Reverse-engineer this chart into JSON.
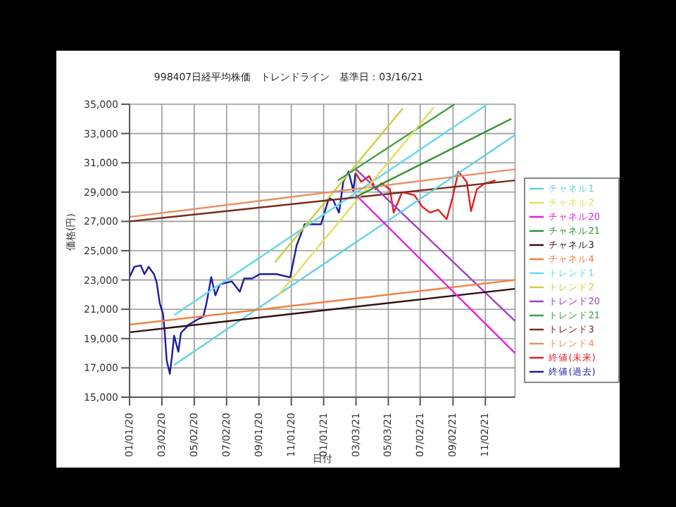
{
  "chart_data": {
    "type": "line",
    "title": "998407日経平均株価　トレンドライン　基準日：03/16/21",
    "xlabel": "日付",
    "ylabel": "価格(円)",
    "xlim": [
      "2020-01-01",
      "2021-12-28"
    ],
    "xticks": [
      {
        "value": "2020-01-01",
        "label": "01/01/20"
      },
      {
        "value": "2020-03-02",
        "label": "03/02/20"
      },
      {
        "value": "2020-05-02",
        "label": "05/02/20"
      },
      {
        "value": "2020-07-02",
        "label": "07/02/20"
      },
      {
        "value": "2020-09-01",
        "label": "09/01/20"
      },
      {
        "value": "2020-11-01",
        "label": "11/01/20"
      },
      {
        "value": "2021-01-01",
        "label": "01/01/21"
      },
      {
        "value": "2021-03-03",
        "label": "03/03/21"
      },
      {
        "value": "2021-05-03",
        "label": "05/03/21"
      },
      {
        "value": "2021-07-02",
        "label": "07/02/21"
      },
      {
        "value": "2021-09-02",
        "label": "09/02/21"
      },
      {
        "value": "2021-11-02",
        "label": "11/02/21"
      }
    ],
    "ylim": [
      15000,
      35000
    ],
    "yticks": [
      {
        "value": 15000,
        "label": "15,000"
      },
      {
        "value": 17000,
        "label": "17,000"
      },
      {
        "value": 19000,
        "label": "19,000"
      },
      {
        "value": 21000,
        "label": "21,000"
      },
      {
        "value": 23000,
        "label": "23,000"
      },
      {
        "value": 25000,
        "label": "25,000"
      },
      {
        "value": 27000,
        "label": "27,000"
      },
      {
        "value": 29000,
        "label": "29,000"
      },
      {
        "value": 31000,
        "label": "31,000"
      },
      {
        "value": 33000,
        "label": "33,000"
      },
      {
        "value": 35000,
        "label": "35,000"
      }
    ],
    "grid": true,
    "legend": "right",
    "marker": "none",
    "line_style": "solid",
    "series": [
      {
        "name": "終値(過去)",
        "color": "#1c1ca0",
        "x": [
          "2020-01-01",
          "2020-01-10",
          "2020-01-22",
          "2020-01-29",
          "2020-02-06",
          "2020-02-16",
          "2020-02-21",
          "2020-02-27",
          "2020-03-04",
          "2020-03-07",
          "2020-03-11",
          "2020-03-17",
          "2020-03-21",
          "2020-03-25",
          "2020-04-02",
          "2020-04-07",
          "2020-04-22",
          "2020-05-08",
          "2020-05-19",
          "2020-05-25",
          "2020-06-03",
          "2020-06-11",
          "2020-06-19",
          "2020-07-12",
          "2020-07-27",
          "2020-08-04",
          "2020-08-19",
          "2020-09-03",
          "2020-10-04",
          "2020-10-27",
          "2020-10-30",
          "2020-11-11",
          "2020-11-26",
          "2020-12-27",
          "2021-01-11",
          "2021-01-19",
          "2021-01-30",
          "2021-02-07",
          "2021-02-17",
          "2021-02-26",
          "2021-03-02"
        ],
        "values": [
          23200,
          23900,
          24000,
          23400,
          23900,
          23400,
          22850,
          21400,
          20700,
          19600,
          17500,
          16600,
          17800,
          19200,
          18100,
          19400,
          19950,
          20300,
          20500,
          21400,
          23200,
          21950,
          22700,
          22900,
          22200,
          23100,
          23100,
          23400,
          23400,
          23200,
          23200,
          25350,
          26800,
          26800,
          28600,
          28450,
          27600,
          29700,
          30400,
          29100,
          30300
        ]
      },
      {
        "name": "終値(未来)",
        "color": "#e02020",
        "x": [
          "2021-03-02",
          "2021-03-13",
          "2021-03-28",
          "2021-04-09",
          "2021-04-20",
          "2021-05-06",
          "2021-05-13",
          "2021-05-29",
          "2021-06-21",
          "2021-07-06",
          "2021-07-21",
          "2021-08-05",
          "2021-08-21",
          "2021-09-01",
          "2021-09-12",
          "2021-09-28",
          "2021-10-06",
          "2021-10-17",
          "2021-11-01",
          "2021-11-13",
          "2021-11-21"
        ],
        "values": [
          30300,
          29700,
          30100,
          29200,
          29600,
          29200,
          27600,
          29000,
          28800,
          28000,
          27600,
          27800,
          27150,
          28600,
          30400,
          29700,
          27700,
          29200,
          29600,
          29700,
          29800
        ]
      },
      {
        "name": "トレンド1",
        "color": "#66d8ec",
        "x": [
          "2020-03-25",
          "2021-11-06"
        ],
        "values": [
          20600,
          35000
        ]
      },
      {
        "name": "トレンド2",
        "color": "#c8d040",
        "x": [
          "2020-10-01",
          "2021-05-30"
        ],
        "values": [
          24200,
          34700
        ]
      },
      {
        "name": "トレンド3",
        "color": "#7a2a1a",
        "x": [
          "2020-01-01",
          "2021-12-28"
        ],
        "values": [
          27000,
          29800
        ]
      },
      {
        "name": "トレンド4",
        "color": "#e89060",
        "x": [
          "2020-01-01",
          "2021-12-28"
        ],
        "values": [
          27300,
          30560
        ]
      },
      {
        "name": "トレンド21",
        "color": "#40a040",
        "x": [
          "2021-01-28",
          "2021-09-05"
        ],
        "values": [
          29800,
          35000
        ]
      },
      {
        "name": "トレンド20",
        "color": "#a040c0",
        "x": [
          "2021-03-03",
          "2021-12-28"
        ],
        "values": [
          30560,
          20200
        ]
      },
      {
        "name": "チャネル1",
        "color": "#60d0e8",
        "x": [
          "2020-03-25",
          "2021-12-28"
        ],
        "values": [
          17200,
          32900
        ]
      },
      {
        "name": "チャネル2",
        "color": "#e0e060",
        "x": [
          "2020-10-06",
          "2021-07-28"
        ],
        "values": [
          21900,
          34800
        ]
      },
      {
        "name": "チャネル3",
        "color": "#301010",
        "x": [
          "2020-01-01",
          "2021-12-28"
        ],
        "values": [
          19430,
          22400
        ]
      },
      {
        "name": "チャネル4",
        "color": "#f08040",
        "x": [
          "2020-01-01",
          "2021-12-28"
        ],
        "values": [
          19950,
          23000
        ]
      },
      {
        "name": "チャネル21",
        "color": "#309030",
        "x": [
          "2021-02-27",
          "2021-12-21"
        ],
        "values": [
          28600,
          34000
        ]
      },
      {
        "name": "チャネル20",
        "color": "#e020e0",
        "x": [
          "2021-03-03",
          "2021-12-28"
        ],
        "values": [
          28800,
          18000
        ]
      }
    ]
  }
}
